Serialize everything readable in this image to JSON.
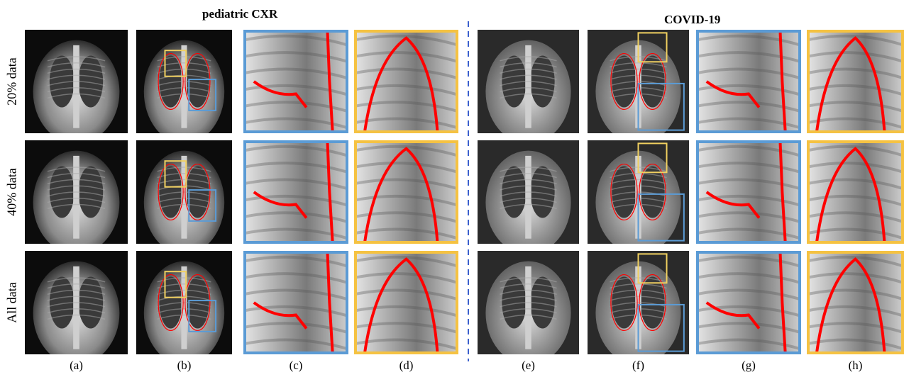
{
  "groups": [
    {
      "title": "pediatric CXR"
    },
    {
      "title": "COVID-19"
    }
  ],
  "rows": [
    "20% data",
    "40% data",
    "All data"
  ],
  "columns": [
    "(a)",
    "(b)",
    "(c)",
    "(d)",
    "(e)",
    "(f)",
    "(g)",
    "(h)"
  ]
}
